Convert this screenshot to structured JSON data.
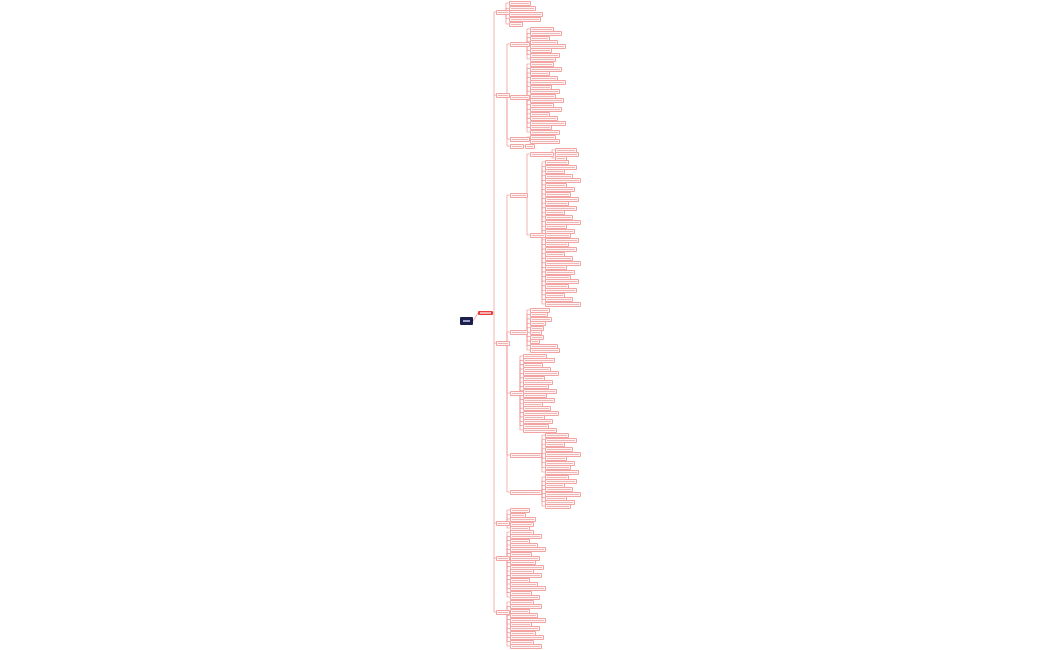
{
  "mindmap": {
    "root": {
      "label": ""
    },
    "center": {
      "label": ""
    },
    "colors": {
      "root": "#1b1f4b",
      "center": "#e8403f",
      "line": "#f08080",
      "node_border": "#f4a3a3",
      "node_fill": "#fff5f5"
    }
  }
}
